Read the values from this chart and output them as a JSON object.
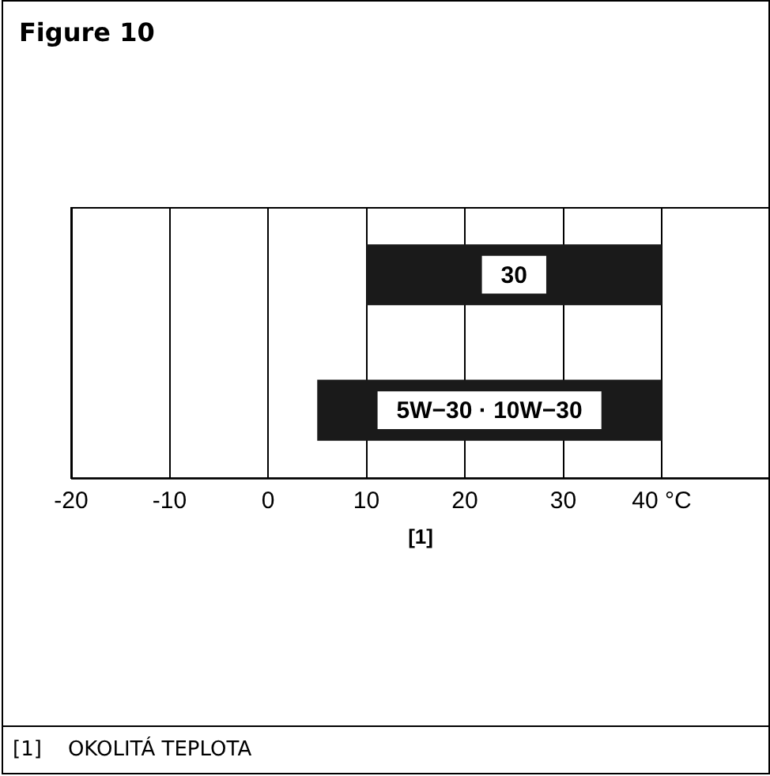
{
  "chart_data": {
    "type": "bar",
    "title": "Figure 10",
    "orientation": "horizontal",
    "categories": [
      "30",
      "5W−30 · 10W−30"
    ],
    "values": [
      30,
      35
    ],
    "base": [
      10,
      5
    ],
    "color": "#1a1a1a",
    "xlim": [
      -20,
      51
    ],
    "xticks": [
      -20,
      -10,
      0,
      10,
      20,
      30,
      {
        "value": 40,
        "label": "40 °C"
      }
    ],
    "xlabel": "[1]",
    "grid": "x",
    "tick_labels": "x",
    "annotations": [
      "[1]    OKOLITÁ TEPLOTA"
    ]
  }
}
